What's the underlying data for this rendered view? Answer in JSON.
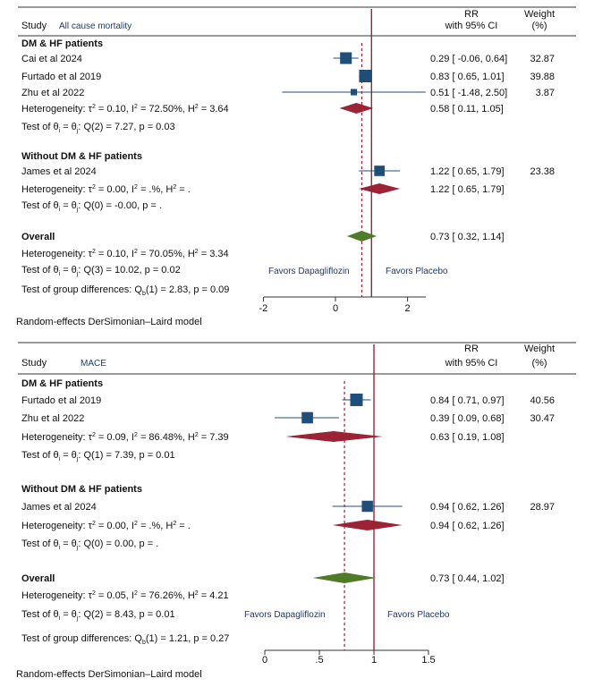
{
  "colors": {
    "marker": "#1f4e79",
    "ci_line": "#1f4e79",
    "subgroup_diamond": "#9b2335",
    "overall_diamond": "#4f7a28",
    "null_line": "#9b2335",
    "overall_line": "#9b2335",
    "favor_text": "#1f3a6e"
  },
  "chart_data": [
    {
      "type": "forest",
      "study_header": "Study",
      "subtitle": "All cause mortality",
      "effect_header_1": "RR",
      "effect_header_2": "with 95% CI",
      "weight_header_1": "Weight",
      "weight_header_2": "(%)",
      "x_ticks": [
        "-2",
        "0",
        "2"
      ],
      "x_tick_values": [
        -2,
        0,
        2
      ],
      "xlim": [
        -2.2,
        2.8
      ],
      "null_value": 1,
      "overall_value": 0.73,
      "favors_left": "Favors Dapagliflozin",
      "favors_right": "Favors Placebo",
      "model_note": "Random-effects DerSimonian–Laird model",
      "group_diff": "Test of group differences: Q",
      "group_diff_sub": "b",
      "group_diff_rest": "(1) = 2.83, p = 0.09",
      "groups": [
        {
          "name": "DM & HF patients",
          "studies": [
            {
              "label": "Cai et al 2024",
              "rr": 0.29,
              "lo": -0.06,
              "hi": 0.64,
              "ci_text": "0.29 [ -0.06,  0.64]",
              "weight": 32.87,
              "weight_text": "32.87"
            },
            {
              "label": "Furtado et al 2019",
              "rr": 0.83,
              "lo": 0.65,
              "hi": 1.01,
              "ci_text": "0.83 [  0.65,  1.01]",
              "weight": 39.88,
              "weight_text": "39.88"
            },
            {
              "label": "Zhu et al 2022",
              "rr": 0.51,
              "lo": -1.48,
              "hi": 2.5,
              "ci_text": "0.51 [ -1.48,  2.50]",
              "weight": 3.87,
              "weight_text": "3.87"
            }
          ],
          "het_prefix": "Heterogeneity: τ",
          "het_rest": " = 0.10, I",
          "het_rest2": " = 72.50%, H",
          "het_rest3": " = 3.64",
          "pooled": {
            "rr": 0.58,
            "lo": 0.11,
            "hi": 1.05,
            "ci_text": "0.58 [  0.11,  1.05]"
          },
          "test_prefix": "Test of θ",
          "test_mid": " = θ",
          "test_rest": ": Q(2) = 7.27, p = 0.03"
        },
        {
          "name": "Without DM & HF patients",
          "studies": [
            {
              "label": "James et al 2024",
              "rr": 1.22,
              "lo": 0.65,
              "hi": 1.79,
              "ci_text": "1.22 [  0.65,  1.79]",
              "weight": 23.38,
              "weight_text": "23.38"
            }
          ],
          "het_prefix": "Heterogeneity: τ",
          "het_rest": " = 0.00, I",
          "het_rest2": " = .%, H",
          "het_rest3": " = .",
          "pooled": {
            "rr": 1.22,
            "lo": 0.65,
            "hi": 1.79,
            "ci_text": "1.22 [  0.65,  1.79]"
          },
          "test_prefix": "Test of θ",
          "test_mid": " = θ",
          "test_rest": ": Q(0) = -0.00, p = ."
        }
      ],
      "overall": {
        "name": "Overall",
        "rr": 0.73,
        "lo": 0.32,
        "hi": 1.14,
        "ci_text": "0.73 [  0.32,  1.14]",
        "het_prefix": "Heterogeneity: τ",
        "het_rest": " = 0.10, I",
        "het_rest2": " = 70.05%, H",
        "het_rest3": " = 3.34",
        "test_prefix": "Test of θ",
        "test_mid": " = θ",
        "test_rest": ": Q(3) = 10.02, p = 0.02"
      }
    },
    {
      "type": "forest",
      "study_header": "Study",
      "subtitle": "MACE",
      "effect_header_1": "RR",
      "effect_header_2": "with 95% CI",
      "weight_header_1": "Weight",
      "weight_header_2": "(%)",
      "x_ticks": [
        "0",
        ".5",
        "1",
        "1.5"
      ],
      "x_tick_values": [
        0,
        0.5,
        1,
        1.5
      ],
      "xlim": [
        0,
        1.5
      ],
      "null_value": 1,
      "overall_value": 0.73,
      "favors_left": "Favors Dapagliflozin",
      "favors_right": "Favors Placebo",
      "model_note": "Random-effects DerSimonian–Laird model",
      "group_diff": "Test of group differences: Q",
      "group_diff_sub": "b",
      "group_diff_rest": "(1) = 1.21, p = 0.27",
      "groups": [
        {
          "name": "DM & HF patients",
          "studies": [
            {
              "label": "Furtado et al 2019",
              "rr": 0.84,
              "lo": 0.71,
              "hi": 0.97,
              "ci_text": "0.84 [ 0.71, 0.97]",
              "weight": 40.56,
              "weight_text": "40.56"
            },
            {
              "label": "Zhu et al 2022",
              "rr": 0.39,
              "lo": 0.09,
              "hi": 0.68,
              "ci_text": "0.39 [ 0.09, 0.68]",
              "weight": 30.47,
              "weight_text": "30.47"
            }
          ],
          "het_prefix": "Heterogeneity: τ",
          "het_rest": " = 0.09, I",
          "het_rest2": " = 86.48%, H",
          "het_rest3": " = 7.39",
          "pooled": {
            "rr": 0.63,
            "lo": 0.19,
            "hi": 1.08,
            "ci_text": "0.63 [ 0.19, 1.08]"
          },
          "test_prefix": "Test of θ",
          "test_mid": " = θ",
          "test_rest": ": Q(1) = 7.39, p = 0.01"
        },
        {
          "name": "Without DM & HF patients",
          "studies": [
            {
              "label": "James et al 2024",
              "rr": 0.94,
              "lo": 0.62,
              "hi": 1.26,
              "ci_text": "0.94 [ 0.62, 1.26]",
              "weight": 28.97,
              "weight_text": "28.97"
            }
          ],
          "het_prefix": "Heterogeneity: τ",
          "het_rest": " = 0.00, I",
          "het_rest2": " = .%, H",
          "het_rest3": " = .",
          "pooled": {
            "rr": 0.94,
            "lo": 0.62,
            "hi": 1.26,
            "ci_text": "0.94 [ 0.62, 1.26]"
          },
          "test_prefix": "Test of θ",
          "test_mid": " = θ",
          "test_rest": ": Q(0) = 0.00, p = ."
        }
      ],
      "overall": {
        "name": "Overall",
        "rr": 0.73,
        "lo": 0.44,
        "hi": 1.02,
        "ci_text": "0.73 [ 0.44, 1.02]",
        "het_prefix": "Heterogeneity: τ",
        "het_rest": " = 0.05, I",
        "het_rest2": " = 76.26%, H",
        "het_rest3": " = 4.21",
        "test_prefix": "Test of θ",
        "test_mid": " = θ",
        "test_rest": ": Q(2) = 8.43, p = 0.01"
      }
    }
  ]
}
